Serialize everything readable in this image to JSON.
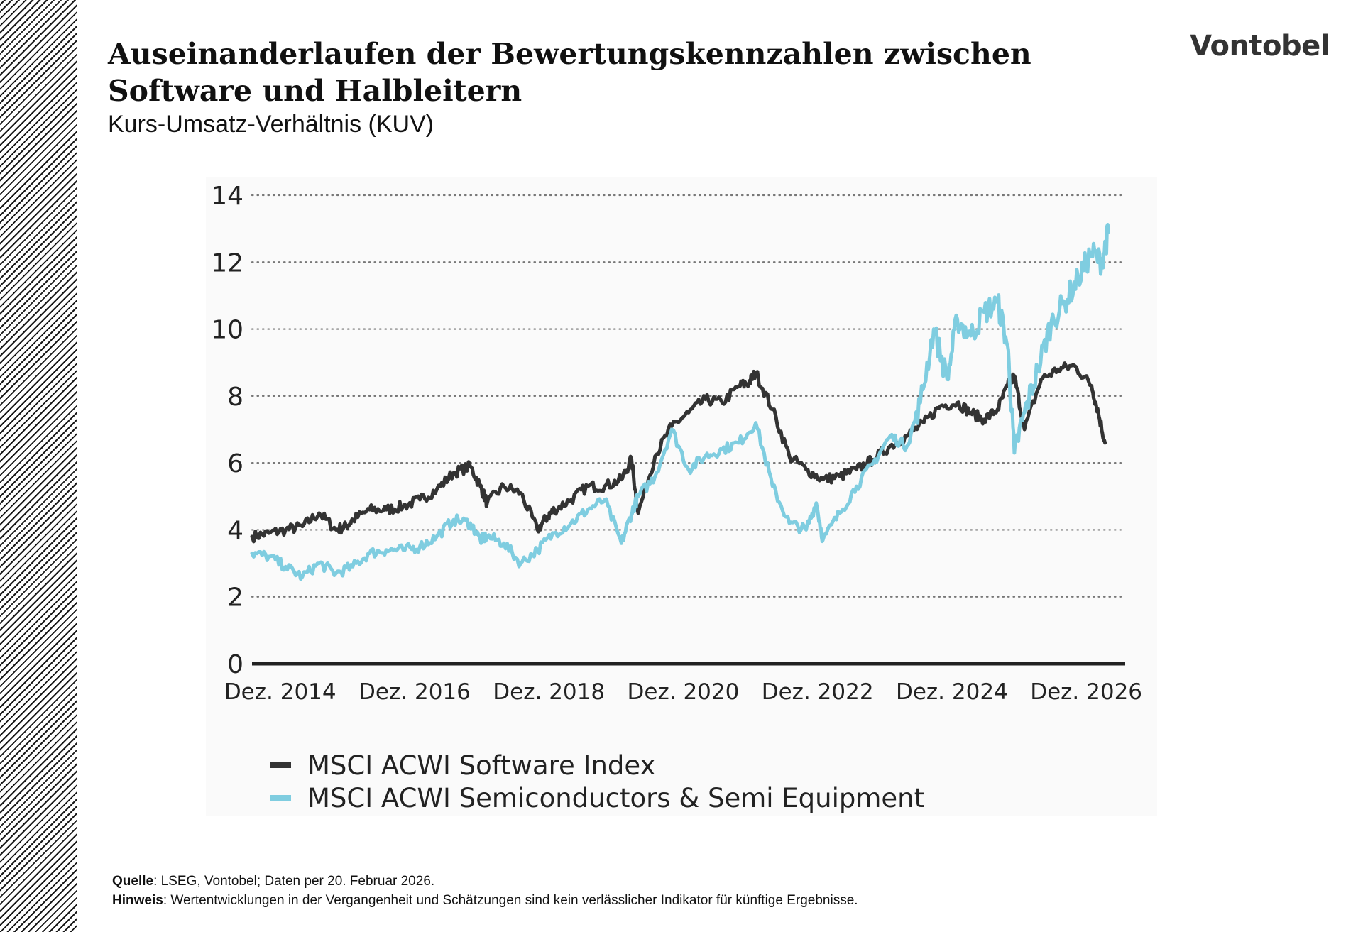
{
  "header": {
    "title": "Auseinanderlaufen der Bewertungskennzahlen zwischen Software und Halbleitern",
    "subtitle": "Kurs-Umsatz-Verhältnis (KUV)",
    "brand": "Vontobel"
  },
  "footer": {
    "source_label": "Quelle",
    "source_text": ": LSEG, Vontobel; Daten per 20. Februar 2026.",
    "note_label": "Hinweis",
    "note_text": ": Wertentwicklungen in der Vergangenheit und Schätzungen sind kein verlässlicher Indikator für künftige Ergebnisse."
  },
  "colors": {
    "software": "#333333",
    "semis": "#7fcde0",
    "grid": "#777777",
    "axis": "#222222"
  },
  "chart_data": {
    "type": "line",
    "title": "Kurs-Umsatz-Verhältnis (KUV)",
    "xlabel": "",
    "ylabel": "",
    "ylim": [
      0,
      14
    ],
    "xlim": [
      2014.5,
      2027.5
    ],
    "yticks": [
      "0",
      "2",
      "4",
      "6",
      "8",
      "10",
      "12",
      "14"
    ],
    "xticks": [
      {
        "label": "Dez. 2014",
        "value": 2014.92
      },
      {
        "label": "Dez. 2016",
        "value": 2016.92
      },
      {
        "label": "Dez. 2018",
        "value": 2018.92
      },
      {
        "label": "Dez. 2020",
        "value": 2020.92
      },
      {
        "label": "Dez. 2022",
        "value": 2022.92
      },
      {
        "label": "Dez. 2024",
        "value": 2024.92
      },
      {
        "label": "Dez. 2026",
        "value": 2026.92
      }
    ],
    "grid": "horizontal dotted",
    "legend_position": "bottom-left",
    "series": [
      {
        "name": "MSCI ACWI Software Index",
        "color": "#333333",
        "x": [
          2014.5,
          2014.75,
          2015.0,
          2015.25,
          2015.5,
          2015.75,
          2015.9,
          2016.0,
          2016.25,
          2016.5,
          2016.75,
          2017.0,
          2017.25,
          2017.5,
          2017.75,
          2017.9,
          2018.0,
          2018.25,
          2018.5,
          2018.75,
          2018.9,
          2019.0,
          2019.25,
          2019.5,
          2019.75,
          2020.0,
          2020.15,
          2020.25,
          2020.5,
          2020.75,
          2021.0,
          2021.25,
          2021.5,
          2021.75,
          2021.9,
          2022.0,
          2022.25,
          2022.5,
          2022.75,
          2023.0,
          2023.25,
          2023.5,
          2023.75,
          2024.0,
          2024.25,
          2024.5,
          2024.75,
          2025.0,
          2025.2,
          2025.4,
          2025.6,
          2025.75,
          2025.85,
          2026.0,
          2026.25,
          2026.5,
          2026.75,
          2027.0,
          2027.1,
          2027.2
        ],
        "values": [
          3.8,
          3.9,
          4.0,
          4.1,
          4.5,
          4.0,
          4.1,
          4.3,
          4.6,
          4.6,
          4.7,
          4.9,
          5.2,
          5.7,
          5.9,
          5.3,
          4.8,
          5.3,
          5.1,
          4.0,
          4.4,
          4.6,
          4.9,
          5.3,
          5.3,
          5.5,
          6.1,
          4.5,
          6.2,
          7.1,
          7.5,
          7.9,
          7.8,
          8.3,
          8.4,
          8.7,
          7.6,
          6.2,
          5.8,
          5.5,
          5.6,
          5.8,
          6.1,
          6.5,
          6.8,
          7.2,
          7.7,
          7.8,
          7.5,
          7.3,
          7.6,
          8.3,
          8.6,
          7.0,
          8.5,
          8.8,
          8.9,
          8.3,
          7.5,
          6.6
        ]
      },
      {
        "name": "MSCI ACWI Semiconductors & Semi Equipment",
        "color": "#7fcde0",
        "x": [
          2014.5,
          2014.75,
          2015.0,
          2015.25,
          2015.5,
          2015.75,
          2016.0,
          2016.25,
          2016.5,
          2016.75,
          2017.0,
          2017.25,
          2017.5,
          2017.75,
          2017.9,
          2018.0,
          2018.25,
          2018.5,
          2018.75,
          2019.0,
          2019.25,
          2019.5,
          2019.75,
          2020.0,
          2020.15,
          2020.25,
          2020.5,
          2020.75,
          2021.0,
          2021.25,
          2021.5,
          2021.75,
          2022.0,
          2022.25,
          2022.5,
          2022.75,
          2022.9,
          2023.0,
          2023.25,
          2023.5,
          2023.75,
          2024.0,
          2024.25,
          2024.45,
          2024.65,
          2024.85,
          2025.0,
          2025.2,
          2025.4,
          2025.6,
          2025.75,
          2025.85,
          2026.0,
          2026.2,
          2026.4,
          2026.6,
          2026.8,
          2027.0,
          2027.15,
          2027.25
        ],
        "values": [
          3.3,
          3.2,
          2.9,
          2.6,
          3.0,
          2.7,
          2.9,
          3.3,
          3.4,
          3.4,
          3.5,
          3.8,
          4.3,
          4.2,
          3.7,
          3.8,
          3.6,
          3.0,
          3.4,
          3.9,
          4.2,
          4.6,
          4.9,
          3.6,
          4.5,
          5.0,
          5.6,
          7.0,
          5.8,
          6.2,
          6.4,
          6.6,
          7.2,
          5.3,
          4.2,
          4.0,
          4.8,
          3.7,
          4.5,
          5.3,
          6.0,
          6.8,
          6.5,
          7.8,
          10.0,
          8.5,
          10.3,
          9.8,
          10.5,
          10.8,
          9.5,
          6.3,
          7.5,
          8.8,
          10.2,
          10.8,
          11.5,
          12.3,
          12.0,
          12.9
        ]
      }
    ]
  }
}
